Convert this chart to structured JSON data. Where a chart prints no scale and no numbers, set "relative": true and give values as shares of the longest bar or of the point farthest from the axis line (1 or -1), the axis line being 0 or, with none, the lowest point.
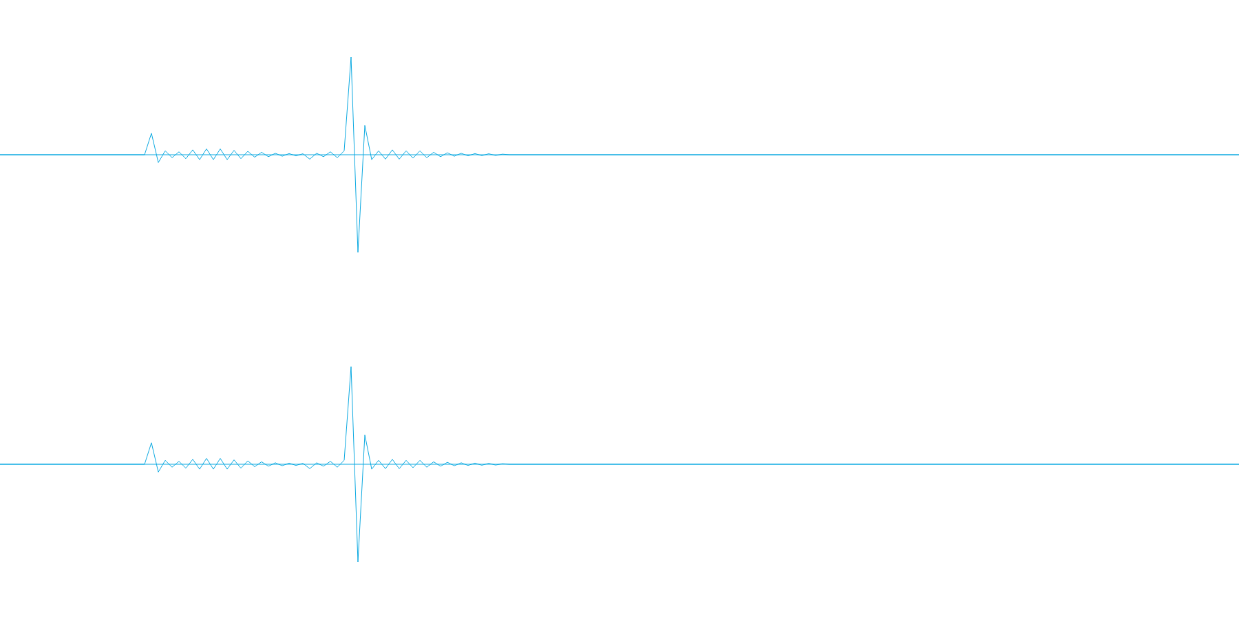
{
  "chart_data": [
    {
      "type": "line",
      "relative": true,
      "ref_lines": [
        {
          "axis": "y",
          "value": 0,
          "color": "#0ba9e1"
        }
      ],
      "categories": [
        null,
        null,
        null,
        null,
        null,
        null,
        null,
        null,
        null,
        null,
        null,
        null,
        null,
        null,
        null,
        null,
        null,
        null,
        null,
        null,
        null,
        null,
        null,
        null,
        null,
        null,
        null,
        null,
        null,
        null,
        null,
        null,
        null,
        null,
        null,
        null,
        null,
        null,
        null,
        null,
        null,
        null,
        null,
        null,
        null,
        null,
        null,
        null,
        null,
        null,
        null,
        null,
        null,
        null,
        null,
        null,
        null,
        null,
        null,
        null,
        null,
        null,
        null,
        null,
        null,
        null,
        null,
        null,
        null,
        null,
        null,
        null,
        null,
        null,
        null,
        null,
        null,
        null,
        null,
        null,
        null,
        null,
        null,
        null,
        null,
        null,
        null,
        null,
        null,
        null,
        null,
        null,
        null,
        null,
        null,
        null,
        null,
        null,
        null,
        null,
        null,
        null,
        null,
        null,
        null,
        null,
        null,
        null,
        null,
        null,
        null,
        null,
        null,
        null,
        null,
        null,
        null,
        null,
        null,
        null,
        null,
        null,
        null,
        null,
        null,
        null,
        null,
        null,
        null,
        null,
        null,
        null,
        null,
        null,
        null,
        null,
        null,
        null,
        null,
        null,
        null,
        null,
        null,
        null,
        null,
        null,
        null,
        null,
        null,
        null,
        null,
        null,
        null,
        null,
        null,
        null,
        null,
        null,
        null,
        null,
        null,
        null,
        null,
        null,
        null,
        null,
        null,
        null,
        null,
        null,
        null,
        null,
        null,
        null,
        null,
        null,
        null,
        null,
        null,
        null,
        null
      ],
      "series": [
        {
          "color": "#0ba9e1",
          "values": [
            0,
            0,
            0,
            0,
            0,
            0,
            0,
            0,
            0,
            0,
            0,
            0,
            0,
            0,
            0,
            0,
            0,
            0,
            0,
            0,
            0,
            0,
            0.22,
            -0.08,
            0.04,
            -0.03,
            0.03,
            -0.04,
            0.05,
            -0.05,
            0.06,
            -0.05,
            0.06,
            -0.05,
            0.045,
            -0.04,
            0.035,
            -0.025,
            0.025,
            -0.02,
            0.015,
            -0.015,
            0.012,
            -0.012,
            0.01,
            -0.045,
            0.015,
            -0.02,
            0.03,
            -0.03,
            0.04,
            1,
            -1,
            0.3,
            -0.05,
            0.04,
            -0.045,
            0.05,
            -0.045,
            0.04,
            -0.035,
            0.04,
            -0.03,
            0.025,
            -0.02,
            0.02,
            -0.015,
            0.015,
            -0.012,
            0.012,
            -0.01,
            0.01,
            -0.008,
            0.006,
            0,
            0,
            0,
            0,
            0,
            0,
            0,
            0,
            0,
            0,
            0,
            0,
            0,
            0,
            0,
            0,
            0,
            0,
            0,
            0,
            0,
            0,
            0,
            0,
            0,
            0,
            0,
            0,
            0,
            0,
            0,
            0,
            0,
            0,
            0,
            0,
            0,
            0,
            0,
            0,
            0,
            0,
            0,
            0,
            0,
            0,
            0,
            0,
            0,
            0,
            0,
            0,
            0,
            0,
            0,
            0,
            0,
            0,
            0,
            0,
            0,
            0,
            0,
            0,
            0,
            0,
            0,
            0,
            0,
            0,
            0,
            0,
            0,
            0,
            0,
            0,
            0,
            0,
            0,
            0,
            0,
            0,
            0,
            0,
            0,
            0,
            0,
            0,
            0,
            0,
            0,
            0,
            0,
            0,
            0,
            0,
            0,
            0,
            0,
            0,
            0,
            0,
            0,
            0,
            0,
            0,
            0
          ]
        }
      ]
    },
    {
      "type": "line",
      "relative": true,
      "ref_lines": [
        {
          "axis": "y",
          "value": 0,
          "color": "#0ba9e1"
        }
      ],
      "categories": [
        null,
        null,
        null,
        null,
        null,
        null,
        null,
        null,
        null,
        null,
        null,
        null,
        null,
        null,
        null,
        null,
        null,
        null,
        null,
        null,
        null,
        null,
        null,
        null,
        null,
        null,
        null,
        null,
        null,
        null,
        null,
        null,
        null,
        null,
        null,
        null,
        null,
        null,
        null,
        null,
        null,
        null,
        null,
        null,
        null,
        null,
        null,
        null,
        null,
        null,
        null,
        null,
        null,
        null,
        null,
        null,
        null,
        null,
        null,
        null,
        null,
        null,
        null,
        null,
        null,
        null,
        null,
        null,
        null,
        null,
        null,
        null,
        null,
        null,
        null,
        null,
        null,
        null,
        null,
        null,
        null,
        null,
        null,
        null,
        null,
        null,
        null,
        null,
        null,
        null,
        null,
        null,
        null,
        null,
        null,
        null,
        null,
        null,
        null,
        null,
        null,
        null,
        null,
        null,
        null,
        null,
        null,
        null,
        null,
        null,
        null,
        null,
        null,
        null,
        null,
        null,
        null,
        null,
        null,
        null,
        null,
        null,
        null,
        null,
        null,
        null,
        null,
        null,
        null,
        null,
        null,
        null,
        null,
        null,
        null,
        null,
        null,
        null,
        null,
        null,
        null,
        null,
        null,
        null,
        null,
        null,
        null,
        null,
        null,
        null,
        null,
        null,
        null,
        null,
        null,
        null,
        null,
        null,
        null,
        null,
        null,
        null,
        null,
        null,
        null,
        null,
        null,
        null,
        null,
        null,
        null,
        null,
        null,
        null,
        null,
        null,
        null,
        null,
        null,
        null,
        null
      ],
      "series": [
        {
          "color": "#0ba9e1",
          "values": [
            0,
            0,
            0,
            0,
            0,
            0,
            0,
            0,
            0,
            0,
            0,
            0,
            0,
            0,
            0,
            0,
            0,
            0,
            0,
            0,
            0,
            0,
            0.22,
            -0.08,
            0.04,
            -0.03,
            0.03,
            -0.04,
            0.05,
            -0.05,
            0.06,
            -0.05,
            0.06,
            -0.05,
            0.045,
            -0.04,
            0.035,
            -0.025,
            0.025,
            -0.02,
            0.015,
            -0.015,
            0.012,
            -0.012,
            0.01,
            -0.045,
            0.015,
            -0.02,
            0.03,
            -0.03,
            0.04,
            1,
            -1,
            0.3,
            -0.05,
            0.04,
            -0.045,
            0.05,
            -0.045,
            0.04,
            -0.035,
            0.04,
            -0.03,
            0.025,
            -0.02,
            0.02,
            -0.015,
            0.015,
            -0.012,
            0.012,
            -0.01,
            0.01,
            -0.008,
            0.006,
            0,
            0,
            0,
            0,
            0,
            0,
            0,
            0,
            0,
            0,
            0,
            0,
            0,
            0,
            0,
            0,
            0,
            0,
            0,
            0,
            0,
            0,
            0,
            0,
            0,
            0,
            0,
            0,
            0,
            0,
            0,
            0,
            0,
            0,
            0,
            0,
            0,
            0,
            0,
            0,
            0,
            0,
            0,
            0,
            0,
            0,
            0,
            0,
            0,
            0,
            0,
            0,
            0,
            0,
            0,
            0,
            0,
            0,
            0,
            0,
            0,
            0,
            0,
            0,
            0,
            0,
            0,
            0,
            0,
            0,
            0,
            0,
            0,
            0,
            0,
            0,
            0,
            0,
            0,
            0,
            0,
            0,
            0,
            0,
            0,
            0,
            0,
            0,
            0,
            0,
            0,
            0,
            0,
            0,
            0,
            0,
            0,
            0,
            0,
            0,
            0,
            0,
            0,
            0,
            0,
            0,
            0
          ]
        }
      ]
    }
  ]
}
